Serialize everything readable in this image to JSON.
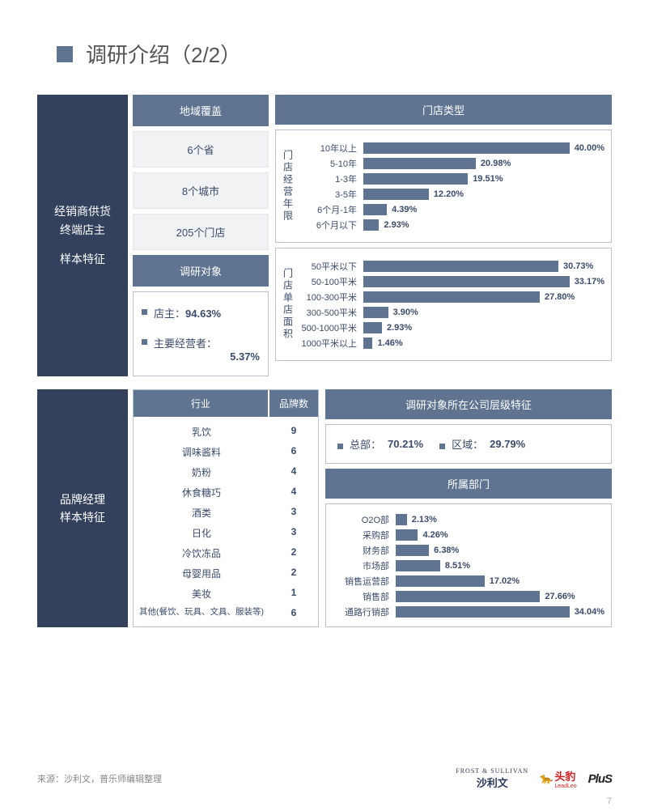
{
  "title": "调研介绍（2/2）",
  "colors": {
    "dark_panel": "#33415c",
    "mid_header": "#5f7491",
    "light_box_bg": "#f0f2f3",
    "border": "#b8c2cf",
    "text_accent": "#3a4c6b"
  },
  "section1": {
    "left_label_line1": "经销商供货",
    "left_label_line2": "终端店主",
    "left_label_line3": "样本特征",
    "coverage_header": "地域覆盖",
    "coverage_items": [
      "6个省",
      "8个城市",
      "205个门店"
    ],
    "respondents_header": "调研对象",
    "respondent_items": [
      {
        "label": "店主：",
        "value": "94.63%"
      },
      {
        "label": "主要经营者：",
        "value": "5.37%"
      }
    ],
    "store_type_header": "门店类型",
    "chart_years": {
      "vlabel": "门店经营年限",
      "max_pct": 45,
      "rows": [
        {
          "cat": "10年以上",
          "val": 40.0,
          "disp": "40.00%"
        },
        {
          "cat": "5-10年",
          "val": 20.98,
          "disp": "20.98%"
        },
        {
          "cat": "1-3年",
          "val": 19.51,
          "disp": "19.51%"
        },
        {
          "cat": "3-5年",
          "val": 12.2,
          "disp": "12.20%"
        },
        {
          "cat": "6个月-1年",
          "val": 4.39,
          "disp": "4.39%"
        },
        {
          "cat": "6个月以下",
          "val": 2.93,
          "disp": "2.93%"
        }
      ]
    },
    "chart_area": {
      "vlabel": "门店单店面积",
      "max_pct": 38,
      "rows": [
        {
          "cat": "50平米以下",
          "val": 30.73,
          "disp": "30.73%"
        },
        {
          "cat": "50-100平米",
          "val": 33.17,
          "disp": "33.17%"
        },
        {
          "cat": "100-300平米",
          "val": 27.8,
          "disp": "27.80%"
        },
        {
          "cat": "300-500平米",
          "val": 3.9,
          "disp": "3.90%"
        },
        {
          "cat": "500-1000平米",
          "val": 2.93,
          "disp": "2.93%"
        },
        {
          "cat": "1000平米以上",
          "val": 1.46,
          "disp": "1.46%"
        }
      ]
    }
  },
  "section2": {
    "left_label_line1": "品牌经理",
    "left_label_line2": "样本特征",
    "industry_header": "行业",
    "brandcount_header": "品牌数",
    "industry_rows": [
      {
        "name": "乳饮",
        "count": "9"
      },
      {
        "name": "调味酱料",
        "count": "6"
      },
      {
        "name": "奶粉",
        "count": "4"
      },
      {
        "name": "休食糖巧",
        "count": "4"
      },
      {
        "name": "酒类",
        "count": "3"
      },
      {
        "name": "日化",
        "count": "3"
      },
      {
        "name": "冷饮冻品",
        "count": "2"
      },
      {
        "name": "母婴用品",
        "count": "2"
      },
      {
        "name": "美妆",
        "count": "1"
      }
    ],
    "industry_other": {
      "name": "其他(餐饮、玩具、文具、服装等)",
      "count": "6"
    },
    "company_level_header": "调研对象所在公司层级特征",
    "hq": {
      "label": "总部：",
      "value": "70.21%"
    },
    "region": {
      "label": "区域：",
      "value": "29.79%"
    },
    "dept_header": "所属部门",
    "chart_dept": {
      "max_pct": 40,
      "rows": [
        {
          "cat": "O2O部",
          "val": 2.13,
          "disp": "2.13%"
        },
        {
          "cat": "采购部",
          "val": 4.26,
          "disp": "4.26%"
        },
        {
          "cat": "财务部",
          "val": 6.38,
          "disp": "6.38%"
        },
        {
          "cat": "市场部",
          "val": 8.51,
          "disp": "8.51%"
        },
        {
          "cat": "销售运营部",
          "val": 17.02,
          "disp": "17.02%"
        },
        {
          "cat": "销售部",
          "val": 27.66,
          "disp": "27.66%"
        },
        {
          "cat": "通路行销部",
          "val": 34.04,
          "disp": "34.04%"
        }
      ]
    }
  },
  "footer": {
    "source": "来源：沙利文，普乐师编辑整理",
    "logo_fs_en": "FROST & SULLIVAN",
    "logo_fs_cn": "沙利文",
    "logo_leopard": "头豹",
    "logo_leopard_en": "LeadLeo",
    "logo_plus": "PluS",
    "pagenum": "7"
  }
}
